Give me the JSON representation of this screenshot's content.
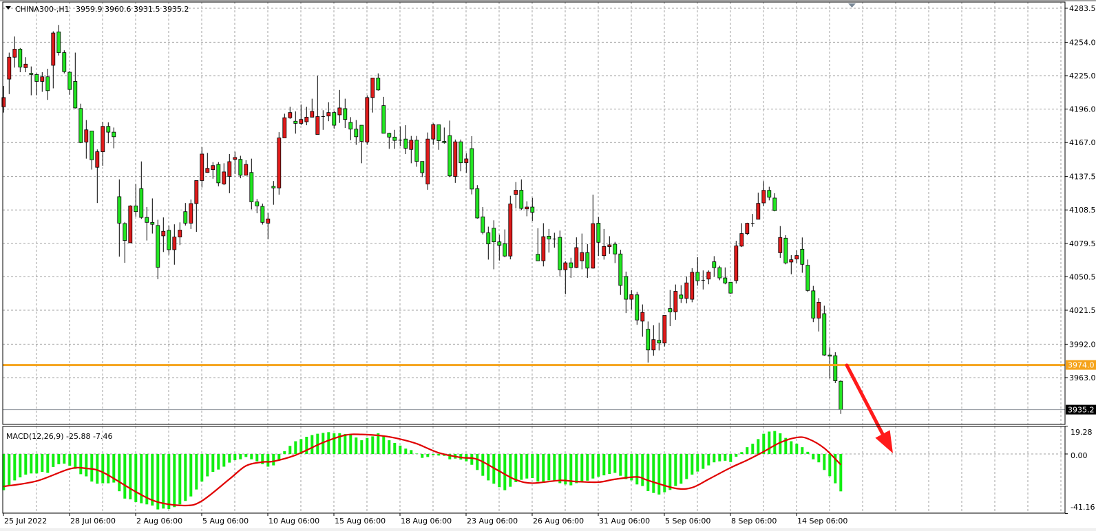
{
  "header": {
    "symbol_timeframe": "CHINA300-,H1",
    "ohlc_text": "3959.9 3960.6 3931.5 3935.2",
    "dropdown_icon": "triangle-down-icon"
  },
  "colors": {
    "bull_candle": "#e01b1b",
    "bear_candle": "#22e622",
    "macd_histogram": "#11ee11",
    "signal_line": "#e00000",
    "support_line": "#f5a31a",
    "arrow": "#ff1a1a",
    "grid": "#a0a0a0",
    "bid_label_bg": "#000000"
  },
  "chart_data": [
    {
      "type": "candlestick",
      "title": "CHINA300-,H1",
      "fields": [
        "open",
        "high",
        "low",
        "close"
      ],
      "ylim": [
        3928.0,
        4287.0
      ],
      "grid": true,
      "y_ticks": [
        "4283.5",
        "4254.0",
        "4225.0",
        "4196.0",
        "4167.0",
        "4137.5",
        "4108.5",
        "4079.5",
        "4050.5",
        "4021.5",
        "3992.0",
        "3963.0"
      ],
      "x_tick_labels": [
        "25 Jul 2022",
        "28 Jul 06:00",
        "2 Aug 06:00",
        "5 Aug 06:00",
        "10 Aug 06:00",
        "15 Aug 06:00",
        "18 Aug 06:00",
        "23 Aug 06:00",
        "26 Aug 06:00",
        "31 Aug 06:00",
        "5 Sep 06:00",
        "8 Sep 06:00",
        "14 Sep 06:00"
      ],
      "horizontal_line": {
        "value": 3974.0,
        "label": "3974.0"
      },
      "bid_line": {
        "value": 3935.2,
        "label": "3935.2"
      },
      "annotation": "down-arrow",
      "candles": [
        [
          4198,
          4216,
          4193,
          4206
        ],
        [
          4222,
          4245,
          4209,
          4241
        ],
        [
          4241,
          4259,
          4232,
          4248
        ],
        [
          4248,
          4249,
          4228,
          4232.5
        ],
        [
          4232,
          4241,
          4228,
          4235
        ],
        [
          4227,
          4233,
          4208,
          4226
        ],
        [
          4226,
          4227,
          4208,
          4220
        ],
        [
          4220,
          4228,
          4211,
          4224
        ],
        [
          4224,
          4231,
          4204,
          4212
        ],
        [
          4234,
          4263.5,
          4214,
          4262
        ],
        [
          4263,
          4269,
          4242.5,
          4245
        ],
        [
          4245,
          4247,
          4227,
          4228.5
        ],
        [
          4228,
          4229,
          4208.5,
          4213
        ],
        [
          4220,
          4245,
          4196.5,
          4197
        ],
        [
          4196.5,
          4200.7,
          4166.4,
          4167
        ],
        [
          4167.4,
          4186.5,
          4153,
          4178
        ],
        [
          4177,
          4177,
          4143.5,
          4152
        ],
        [
          4145.5,
          4161,
          4114.5,
          4159
        ],
        [
          4159,
          4185,
          4146.7,
          4181
        ],
        [
          4181,
          4184.5,
          4166.4,
          4176
        ],
        [
          4176,
          4180,
          4162,
          4172
        ],
        [
          4120,
          4135,
          4068,
          4097
        ],
        [
          4096.7,
          4098,
          4062.6,
          4082
        ],
        [
          4080,
          4112.5,
          4080,
          4112
        ],
        [
          4112,
          4131,
          4102.7,
          4107
        ],
        [
          4127,
          4150.6,
          4100.7,
          4102
        ],
        [
          4102,
          4111,
          4082,
          4097.7
        ],
        [
          4097.7,
          4118.5,
          4088,
          4096
        ],
        [
          4095,
          4100,
          4048.4,
          4058.7
        ],
        [
          4086,
          4102,
          4072,
          4090
        ],
        [
          4090.8,
          4094.8,
          4069.7,
          4074
        ],
        [
          4074,
          4096,
          4061,
          4085
        ],
        [
          4085,
          4097.7,
          4078,
          4091
        ],
        [
          4107,
          4114.5,
          4095,
          4097
        ],
        [
          4097,
          4117.5,
          4092,
          4114
        ],
        [
          4114,
          4134,
          4089.5,
          4134
        ],
        [
          4134,
          4163,
          4128,
          4157
        ],
        [
          4141,
          4158,
          4140.7,
          4144.6
        ],
        [
          4143.5,
          4150,
          4135.6,
          4147
        ],
        [
          4148,
          4150,
          4129,
          4132
        ],
        [
          4131,
          4149,
          4130,
          4141.5
        ],
        [
          4137.6,
          4157,
          4123,
          4150.4
        ],
        [
          4152.4,
          4159,
          4139.6,
          4154
        ],
        [
          4152.4,
          4155.5,
          4136,
          4138.6
        ],
        [
          4138.6,
          4151.6,
          4138.6,
          4148
        ],
        [
          4141,
          4153,
          4109,
          4115.5
        ],
        [
          4115.5,
          4118,
          4105.6,
          4112
        ],
        [
          4111.6,
          4114,
          4095.8,
          4097.7
        ],
        [
          4097,
          4106,
          4083,
          4100.7
        ],
        [
          4129,
          4133.6,
          4113,
          4127.6
        ],
        [
          4127.6,
          4176,
          4121.8,
          4171
        ],
        [
          4171,
          4192,
          4171,
          4188.5
        ],
        [
          4188.5,
          4198,
          4187.5,
          4193
        ],
        [
          4185.5,
          4194,
          4174.7,
          4183.6
        ],
        [
          4183.6,
          4200,
          4182,
          4187
        ],
        [
          4185,
          4198,
          4182,
          4189
        ],
        [
          4189,
          4205,
          4189,
          4194
        ],
        [
          4174,
          4225,
          4174,
          4189.5
        ],
        [
          4189.5,
          4195,
          4178,
          4189.5
        ],
        [
          4190,
          4202,
          4185.5,
          4193
        ],
        [
          4193,
          4194.4,
          4179,
          4182
        ],
        [
          4191,
          4212.6,
          4184,
          4197
        ],
        [
          4196.4,
          4205,
          4179.6,
          4187
        ],
        [
          4184.5,
          4189,
          4169,
          4178.6
        ],
        [
          4178.6,
          4186.5,
          4165,
          4172
        ],
        [
          4182,
          4182,
          4149,
          4168
        ],
        [
          4167.4,
          4208,
          4165,
          4206
        ],
        [
          4206,
          4223,
          4193,
          4223
        ],
        [
          4223,
          4227,
          4212,
          4212.6
        ],
        [
          4199,
          4206.6,
          4175,
          4175
        ],
        [
          4175,
          4175.5,
          4161.5,
          4171.7
        ],
        [
          4171.7,
          4178,
          4161.5,
          4168.8
        ],
        [
          4169,
          4181,
          4164,
          4169
        ],
        [
          4170,
          4182,
          4157,
          4162
        ],
        [
          4161,
          4172.7,
          4149,
          4169
        ],
        [
          4169,
          4172.7,
          4146,
          4150.6
        ],
        [
          4150.6,
          4150.6,
          4137,
          4140.8
        ],
        [
          4131,
          4175.7,
          4126,
          4170
        ],
        [
          4170,
          4183.6,
          4165,
          4182.6
        ],
        [
          4182.4,
          4182.4,
          4160.7,
          4168.6
        ],
        [
          4168,
          4180,
          4166,
          4167
        ],
        [
          4173,
          4186,
          4137,
          4138
        ],
        [
          4137.6,
          4169.6,
          4132,
          4167.6
        ],
        [
          4167.6,
          4169.6,
          4142,
          4149.4
        ],
        [
          4149.4,
          4157.7,
          4140.6,
          4152.8
        ],
        [
          4161.7,
          4172.5,
          4122,
          4126.6
        ],
        [
          4127,
          4130,
          4101,
          4101.5
        ],
        [
          4102.5,
          4111,
          4087.3,
          4089
        ],
        [
          4088.7,
          4094,
          4065.4,
          4079
        ],
        [
          4092.6,
          4099.5,
          4057,
          4080.8
        ],
        [
          4080.8,
          4087,
          4064.6,
          4077.8
        ],
        [
          4079.2,
          4091.6,
          4067.4,
          4068.5
        ],
        [
          4068.5,
          4120.8,
          4065.6,
          4113.7
        ],
        [
          4122,
          4132.7,
          4109.8,
          4125.6
        ],
        [
          4125.6,
          4135,
          4108.4,
          4109.8
        ],
        [
          4109.4,
          4116,
          4103,
          4111
        ],
        [
          4111,
          4119,
          4099,
          4106.4
        ],
        [
          4070,
          4092.6,
          4064.4,
          4064.4
        ],
        [
          4064.4,
          4097,
          4059.5,
          4085.3
        ],
        [
          4085.7,
          4092,
          4071.5,
          4083.3
        ],
        [
          4083.3,
          4088.7,
          4075.8,
          4083.3
        ],
        [
          4084.7,
          4090.6,
          4050.8,
          4056.6
        ],
        [
          4056.6,
          4064,
          4035.4,
          4062.6
        ],
        [
          4062.6,
          4067,
          4049.6,
          4058.5
        ],
        [
          4058.5,
          4084.7,
          4058,
          4075.8
        ],
        [
          4064.4,
          4088,
          4057,
          4071.5
        ],
        [
          4071.5,
          4078.8,
          4049.6,
          4058
        ],
        [
          4058,
          4121.8,
          4057.5,
          4096.6
        ],
        [
          4097,
          4102.5,
          4068.5,
          4080.4
        ],
        [
          4068.8,
          4092,
          4065.4,
          4076.8
        ],
        [
          4076.6,
          4085.7,
          4070.5,
          4078.2
        ],
        [
          4078.8,
          4080.8,
          4062.4,
          4070.3
        ],
        [
          4070.3,
          4073.9,
          4034.8,
          4043
        ],
        [
          4050.8,
          4055,
          4019,
          4031
        ],
        [
          4031,
          4039,
          4022,
          4035
        ],
        [
          4034.8,
          4037.4,
          4008.8,
          4013
        ],
        [
          4012,
          4026.5,
          3998.5,
          4019.6
        ],
        [
          4005,
          4011.7,
          3976,
          3987
        ],
        [
          3987,
          4008.4,
          3982,
          3996
        ],
        [
          3995.4,
          4010.6,
          3986.6,
          3993
        ],
        [
          3993,
          4017,
          3990,
          4017
        ],
        [
          4022.9,
          4039,
          4007.7,
          4020
        ],
        [
          4020,
          4043.8,
          4013.2,
          4037.9
        ],
        [
          4034.7,
          4043.2,
          4027.8,
          4031.7
        ],
        [
          4031.7,
          4050.7,
          4027.4,
          4045.2
        ],
        [
          4031,
          4058,
          4028.4,
          4054.4
        ],
        [
          4054.4,
          4067.5,
          4042.8,
          4047
        ],
        [
          4047.5,
          4056,
          4039.5,
          4047.5
        ],
        [
          4048.5,
          4056,
          4044,
          4054.6
        ],
        [
          4063.5,
          4068.4,
          4050.7,
          4058.4
        ],
        [
          4058.4,
          4060,
          4047.5,
          4049.5
        ],
        [
          4049.5,
          4058.6,
          4044,
          4045
        ],
        [
          4045.8,
          4046,
          4035.9,
          4036.3
        ],
        [
          4047.2,
          4081.7,
          4044.6,
          4077.3
        ],
        [
          4077.1,
          4097,
          4076.3,
          4088
        ],
        [
          4088,
          4097.4,
          4086.6,
          4096.9
        ],
        [
          4096.9,
          4105,
          4093.9,
          4096.9
        ],
        [
          4100.4,
          4123.5,
          4100.4,
          4114.2
        ],
        [
          4114.6,
          4133.4,
          4111.7,
          4125.5
        ],
        [
          4125.5,
          4128.6,
          4116.8,
          4119.5
        ],
        [
          4118.8,
          4123,
          4107.3,
          4107.9
        ],
        [
          4071.4,
          4094.5,
          4066.9,
          4084.6
        ],
        [
          4084,
          4086.6,
          4061.3,
          4062.5
        ],
        [
          4063.3,
          4069.3,
          4052.7,
          4065.3
        ],
        [
          4065.9,
          4073.4,
          4062.5,
          4068.9
        ],
        [
          4074.4,
          4084.6,
          4054,
          4061.3
        ],
        [
          4060.5,
          4065.5,
          4037.3,
          4038.6
        ],
        [
          4038.3,
          4042.6,
          4011.2,
          4014.6
        ],
        [
          4014.6,
          4032,
          4003,
          4028.4
        ],
        [
          4018.5,
          4025.4,
          3982,
          3982.6
        ],
        [
          3982.6,
          3989.3,
          3962.3,
          3981.6
        ],
        [
          3982,
          3985,
          3958.3,
          3960.3
        ],
        [
          3959.9,
          3960.6,
          3931.5,
          3935.2
        ]
      ]
    },
    {
      "type": "bar",
      "title": "MACD(12,26,9) -25.88 -7.46",
      "ylim": [
        -41.16,
        19.28
      ],
      "y_ticks": [
        "19.28",
        "0.00",
        "-41.16"
      ],
      "macd": [
        -25.1,
        -21.5,
        -18.3,
        -16.2,
        -14.3,
        -13.5,
        -13.5,
        -12.4,
        -13.1,
        -9.0,
        -7.1,
        -6.7,
        -8.2,
        -10.3,
        -14.0,
        -15.5,
        -19.1,
        -20.6,
        -20.3,
        -20.3,
        -19.8,
        -25.8,
        -30.9,
        -31.4,
        -33.3,
        -34.1,
        -34.9,
        -35.7,
        -38.4,
        -37.8,
        -38.1,
        -36.8,
        -34.9,
        -32.5,
        -29.4,
        -24.6,
        -19.1,
        -15.5,
        -12.4,
        -10.8,
        -8.8,
        -6.0,
        -4.3,
        -3.7,
        -2.1,
        -3.7,
        -5.1,
        -7.1,
        -8.8,
        -7.9,
        -3.9,
        1.9,
        5.6,
        8.8,
        10.3,
        11.9,
        13.1,
        14.0,
        14.6,
        15.1,
        14.3,
        14.4,
        13.8,
        13.1,
        11.4,
        9.5,
        11.1,
        12.2,
        14.3,
        12.2,
        9.5,
        7.6,
        5.8,
        3.7,
        2.7,
        0.3,
        -2.7,
        -2.1,
        -0.8,
        -1.1,
        -1.3,
        -3.7,
        -3.2,
        -3.9,
        -5.1,
        -7.5,
        -11.1,
        -15.1,
        -18.3,
        -20.6,
        -23.0,
        -25.1,
        -22.7,
        -19.5,
        -17.9,
        -17.0,
        -16.7,
        -19.1,
        -19.1,
        -18.3,
        -18.3,
        -20.2,
        -21.1,
        -21.7,
        -20.2,
        -19.1,
        -18.5,
        -17.0,
        -15.7,
        -14.8,
        -13.8,
        -13.1,
        -15.1,
        -17.4,
        -18.3,
        -21.1,
        -22.2,
        -25.7,
        -27.0,
        -28.1,
        -26.5,
        -24.9,
        -22.2,
        -20.6,
        -17.4,
        -14.3,
        -12.2,
        -10.3,
        -7.9,
        -5.8,
        -5.1,
        -4.7,
        -5.6,
        -1.9,
        1.3,
        4.7,
        7.1,
        10.3,
        14.0,
        15.5,
        15.9,
        14.3,
        11.1,
        8.8,
        7.1,
        4.7,
        1.5,
        -3.7,
        -5.8,
        -11.1,
        -15.4,
        -20.3,
        -25.88
      ],
      "signal": [
        [
          0,
          -22.5
        ],
        [
          6,
          -18.7
        ],
        [
          12,
          -10.3
        ],
        [
          15,
          -10.0
        ],
        [
          18,
          -12.7
        ],
        [
          24,
          -26.2
        ],
        [
          28,
          -33.3
        ],
        [
          33,
          -35.7
        ],
        [
          36,
          -32.5
        ],
        [
          41,
          -17.4
        ],
        [
          44,
          -8.2
        ],
        [
          47,
          -5.6
        ],
        [
          49,
          -5.1
        ],
        [
          53,
          -0.8
        ],
        [
          58,
          7.9
        ],
        [
          62,
          13.0
        ],
        [
          65,
          13.5
        ],
        [
          69,
          12.4
        ],
        [
          72,
          10.3
        ],
        [
          75,
          7.1
        ],
        [
          79,
          0.8
        ],
        [
          83,
          -2.4
        ],
        [
          86,
          -3.7
        ],
        [
          90,
          -11.9
        ],
        [
          93,
          -17.9
        ],
        [
          96,
          -20.2
        ],
        [
          101,
          -18.3
        ],
        [
          104,
          -19.1
        ],
        [
          108,
          -19.5
        ],
        [
          111,
          -17.5
        ],
        [
          115,
          -15.9
        ],
        [
          117,
          -18.3
        ],
        [
          122,
          -23.8
        ],
        [
          125,
          -23.3
        ],
        [
          128,
          -17.5
        ],
        [
          132,
          -9.5
        ],
        [
          135,
          -4.3
        ],
        [
          138,
          1.6
        ],
        [
          141,
          7.9
        ],
        [
          144,
          11.4
        ],
        [
          146,
          10.6
        ],
        [
          149,
          4.0
        ],
        [
          152,
          -7.46
        ]
      ]
    }
  ]
}
